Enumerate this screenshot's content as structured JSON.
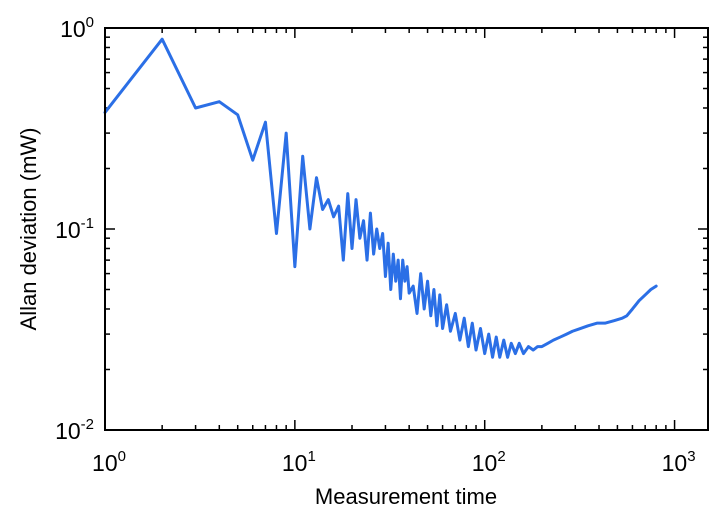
{
  "chart_data": {
    "type": "line",
    "title": "",
    "xlabel": "Measurement time",
    "ylabel": "Allan deviation (mW)",
    "x_scale": "log",
    "y_scale": "log",
    "xlim": [
      1,
      1500
    ],
    "ylim": [
      0.01,
      1
    ],
    "grid": false,
    "legend": "none",
    "line_color": "#2b6fe6",
    "x_ticks": [
      {
        "base": "10",
        "exp": "0",
        "value": 1
      },
      {
        "base": "10",
        "exp": "1",
        "value": 10
      },
      {
        "base": "10",
        "exp": "2",
        "value": 100
      },
      {
        "base": "10",
        "exp": "3",
        "value": 1000
      }
    ],
    "y_ticks": [
      {
        "base": "10",
        "exp": "-2",
        "value": 0.01
      },
      {
        "base": "10",
        "exp": "-1",
        "value": 0.1
      },
      {
        "base": "10",
        "exp": "0",
        "value": 1
      }
    ],
    "series": [
      {
        "x": [
          1,
          2,
          3,
          4,
          5,
          6,
          7,
          8,
          9,
          10,
          11,
          12,
          13,
          14,
          15,
          16,
          17,
          18,
          19,
          20,
          21,
          22,
          23,
          24,
          25,
          26,
          27,
          28,
          29,
          30,
          31,
          32,
          33,
          34,
          35,
          36,
          37,
          38,
          39,
          40,
          42,
          44,
          46,
          48,
          50,
          52,
          54,
          56,
          58,
          60,
          63,
          66,
          70,
          74,
          78,
          82,
          86,
          90,
          95,
          100,
          105,
          110,
          115,
          120,
          126,
          132,
          138,
          145,
          152,
          160,
          170,
          180,
          190,
          200,
          215,
          230,
          250,
          270,
          290,
          320,
          350,
          390,
          430,
          480,
          530,
          560,
          600,
          650,
          700,
          750,
          800
        ],
        "y": [
          0.38,
          0.88,
          0.4,
          0.43,
          0.37,
          0.22,
          0.34,
          0.095,
          0.3,
          0.065,
          0.23,
          0.1,
          0.18,
          0.125,
          0.14,
          0.115,
          0.13,
          0.07,
          0.15,
          0.08,
          0.14,
          0.09,
          0.11,
          0.07,
          0.12,
          0.075,
          0.1,
          0.08,
          0.095,
          0.058,
          0.085,
          0.05,
          0.075,
          0.055,
          0.07,
          0.045,
          0.07,
          0.055,
          0.065,
          0.048,
          0.052,
          0.038,
          0.06,
          0.04,
          0.055,
          0.037,
          0.05,
          0.033,
          0.047,
          0.032,
          0.042,
          0.031,
          0.038,
          0.028,
          0.036,
          0.026,
          0.034,
          0.025,
          0.032,
          0.024,
          0.03,
          0.023,
          0.029,
          0.023,
          0.028,
          0.023,
          0.027,
          0.024,
          0.027,
          0.024,
          0.026,
          0.025,
          0.026,
          0.026,
          0.027,
          0.028,
          0.029,
          0.03,
          0.031,
          0.032,
          0.033,
          0.034,
          0.034,
          0.035,
          0.036,
          0.037,
          0.04,
          0.044,
          0.047,
          0.05,
          0.052
        ]
      }
    ]
  }
}
